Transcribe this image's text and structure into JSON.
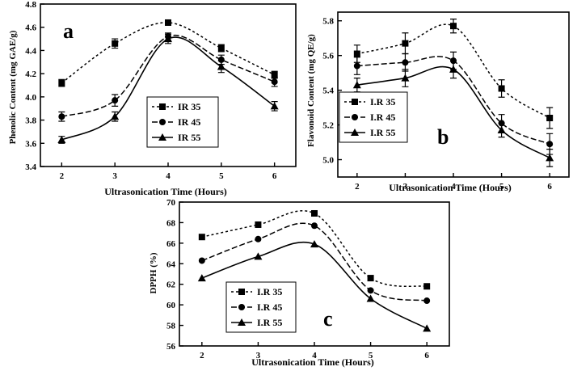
{
  "chart_data": [
    {
      "id": "a",
      "type": "line",
      "panel_letter": "a",
      "xlabel": "Ultrasonication Time (Hours)",
      "ylabel": "Phenolic Content (mg GAE/g)",
      "xlim": [
        1.6,
        6.4
      ],
      "ylim": [
        3.4,
        4.8
      ],
      "x_ticks": [
        "2",
        "3",
        "4",
        "5",
        "6"
      ],
      "y_ticks": [
        "3.4",
        "3.6",
        "3.8",
        "4.0",
        "4.2",
        "4.4",
        "4.6",
        "4.8"
      ],
      "legend_position": "middle-right",
      "x": [
        2,
        3,
        4,
        5,
        6
      ],
      "series": [
        {
          "name": "IR 35",
          "marker": "square",
          "line": "dotted",
          "values": [
            4.12,
            4.46,
            4.64,
            4.42,
            4.19
          ],
          "errors": [
            0.03,
            0.04,
            0.02,
            0.03,
            0.03
          ]
        },
        {
          "name": "IR 45",
          "marker": "circle",
          "line": "dashed",
          "values": [
            3.83,
            3.97,
            4.52,
            4.32,
            4.13
          ],
          "errors": [
            0.04,
            0.05,
            0.03,
            0.04,
            0.04
          ]
        },
        {
          "name": "IR 55",
          "marker": "triangle",
          "line": "solid",
          "values": [
            3.63,
            3.83,
            4.5,
            4.26,
            3.92
          ],
          "errors": [
            0.03,
            0.04,
            0.04,
            0.05,
            0.04
          ]
        }
      ]
    },
    {
      "id": "b",
      "type": "line",
      "panel_letter": "b",
      "xlabel": "Ultrasonication Time (Hours)",
      "ylabel": "Flavonoid Content (mg QE/g)",
      "xlim": [
        1.6,
        6.4
      ],
      "ylim": [
        4.9,
        5.85
      ],
      "x_ticks": [
        "2",
        "3",
        "4",
        "5",
        "6"
      ],
      "y_ticks": [
        "5.0",
        "5.2",
        "5.4",
        "5.6",
        "5.8"
      ],
      "legend_position": "middle-right",
      "x": [
        2,
        3,
        4,
        5,
        6
      ],
      "series": [
        {
          "name": "I.R 35",
          "marker": "square",
          "line": "dotted",
          "values": [
            5.61,
            5.67,
            5.77,
            5.41,
            5.24
          ],
          "errors": [
            0.05,
            0.06,
            0.04,
            0.05,
            0.06
          ]
        },
        {
          "name": "I.R 45",
          "marker": "circle",
          "line": "dashed",
          "values": [
            5.54,
            5.56,
            5.57,
            5.21,
            5.09
          ],
          "errors": [
            0.05,
            0.05,
            0.05,
            0.05,
            0.06
          ]
        },
        {
          "name": "I.R 55",
          "marker": "triangle",
          "line": "solid",
          "values": [
            5.43,
            5.47,
            5.52,
            5.17,
            5.01
          ],
          "errors": [
            0.04,
            0.05,
            0.05,
            0.04,
            0.05
          ]
        }
      ]
    },
    {
      "id": "c",
      "type": "line",
      "panel_letter": "c",
      "xlabel": "Ultrasonication Time (Hours)",
      "ylabel": "DPPH (%)",
      "xlim": [
        1.6,
        6.4
      ],
      "ylim": [
        56,
        70
      ],
      "x_ticks": [
        "2",
        "3",
        "4",
        "5",
        "6"
      ],
      "y_ticks": [
        "56",
        "58",
        "60",
        "62",
        "64",
        "66",
        "68",
        "70"
      ],
      "legend_position": "middle-left",
      "x": [
        2,
        3,
        4,
        5,
        6
      ],
      "series": [
        {
          "name": "I.R 35",
          "marker": "square",
          "line": "dotted",
          "values": [
            66.6,
            67.8,
            68.9,
            62.6,
            61.8
          ],
          "errors": [
            0,
            0,
            0,
            0,
            0
          ]
        },
        {
          "name": "I.R 45",
          "marker": "circle",
          "line": "dashed",
          "values": [
            64.3,
            66.4,
            67.7,
            61.4,
            60.4
          ],
          "errors": [
            0,
            0,
            0,
            0,
            0
          ]
        },
        {
          "name": "I.R 55",
          "marker": "triangle",
          "line": "solid",
          "values": [
            62.6,
            64.7,
            65.9,
            60.6,
            57.7
          ],
          "errors": [
            0,
            0,
            0,
            0,
            0
          ]
        }
      ]
    }
  ]
}
